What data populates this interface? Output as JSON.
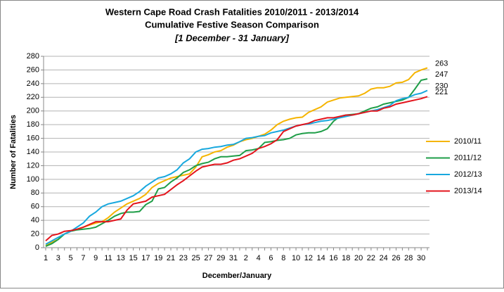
{
  "chart_data": {
    "type": "line",
    "title": "Western Cape Road Crash Fatalities 2010/2011 - 2013/2014",
    "subtitle": "Cumulative Festive Season Comparison",
    "date_range": "[1 December - 31 January]",
    "y_label": "Number of Fatalities",
    "x_label": "December/January",
    "categories": [
      "1",
      null,
      "3",
      null,
      "5",
      null,
      "7",
      null,
      "9",
      null,
      "11",
      null,
      "13",
      null,
      "15",
      null,
      "17",
      null,
      "19",
      null,
      "21",
      null,
      "23",
      null,
      "25",
      null,
      "27",
      null,
      "29",
      null,
      "31",
      null,
      "2",
      null,
      "4",
      null,
      "6",
      null,
      "8",
      null,
      "10",
      null,
      "12",
      null,
      "14",
      null,
      "16",
      null,
      "18",
      null,
      "20",
      null,
      "22",
      null,
      "24",
      null,
      "26",
      null,
      "28",
      null,
      "30",
      null
    ],
    "ylim": [
      0,
      280
    ],
    "yticks": [
      0,
      20,
      40,
      60,
      80,
      100,
      120,
      140,
      160,
      180,
      200,
      220,
      240,
      260,
      280
    ],
    "grid": true,
    "legend": "right",
    "series": [
      {
        "name": "2010/11",
        "color": "#f5b400",
        "values": [
          3,
          8,
          12,
          20,
          24,
          27,
          30,
          33,
          36,
          38,
          44,
          52,
          58,
          64,
          68,
          72,
          78,
          88,
          94,
          98,
          102,
          104,
          106,
          108,
          118,
          133,
          136,
          140,
          142,
          147,
          150,
          155,
          158,
          160,
          163,
          166,
          172,
          180,
          185,
          188,
          190,
          191,
          198,
          202,
          206,
          213,
          216,
          219,
          220,
          221,
          222,
          226,
          232,
          234,
          234,
          236,
          241,
          242,
          246,
          256,
          260,
          263
        ]
      },
      {
        "name": "2011/12",
        "color": "#1f9e48",
        "values": [
          2,
          6,
          12,
          20,
          24,
          26,
          27,
          28,
          30,
          35,
          40,
          46,
          50,
          52,
          52,
          53,
          63,
          68,
          86,
          88,
          96,
          102,
          110,
          114,
          120,
          123,
          125,
          130,
          133,
          133,
          134,
          135,
          142,
          143,
          145,
          154,
          155,
          157,
          158,
          160,
          165,
          167,
          168,
          168,
          170,
          174,
          185,
          192,
          194,
          195,
          196,
          200,
          204,
          206,
          210,
          212,
          214,
          216,
          220,
          232,
          245,
          247
        ]
      },
      {
        "name": "2012/13",
        "color": "#18a8de",
        "values": [
          5,
          10,
          15,
          20,
          24,
          30,
          36,
          46,
          52,
          60,
          64,
          66,
          68,
          72,
          76,
          82,
          90,
          96,
          102,
          104,
          108,
          114,
          124,
          130,
          140,
          144,
          145,
          147,
          148,
          150,
          151,
          155,
          160,
          161,
          163,
          164,
          168,
          170,
          172,
          175,
          178,
          180,
          181,
          183,
          185,
          186,
          188,
          190,
          192,
          194,
          196,
          198,
          200,
          202,
          205,
          208,
          215,
          218,
          220,
          224,
          226,
          230
        ]
      },
      {
        "name": "2013/14",
        "color": "#e3141c",
        "values": [
          10,
          18,
          20,
          24,
          25,
          27,
          30,
          34,
          38,
          38,
          38,
          40,
          42,
          55,
          64,
          66,
          68,
          74,
          76,
          78,
          85,
          92,
          98,
          105,
          112,
          118,
          120,
          122,
          122,
          124,
          128,
          130,
          134,
          138,
          145,
          148,
          152,
          158,
          170,
          174,
          178,
          180,
          182,
          186,
          188,
          190,
          190,
          192,
          194,
          194,
          196,
          198,
          200,
          200,
          204,
          206,
          210,
          212,
          214,
          216,
          218,
          221
        ]
      }
    ]
  }
}
